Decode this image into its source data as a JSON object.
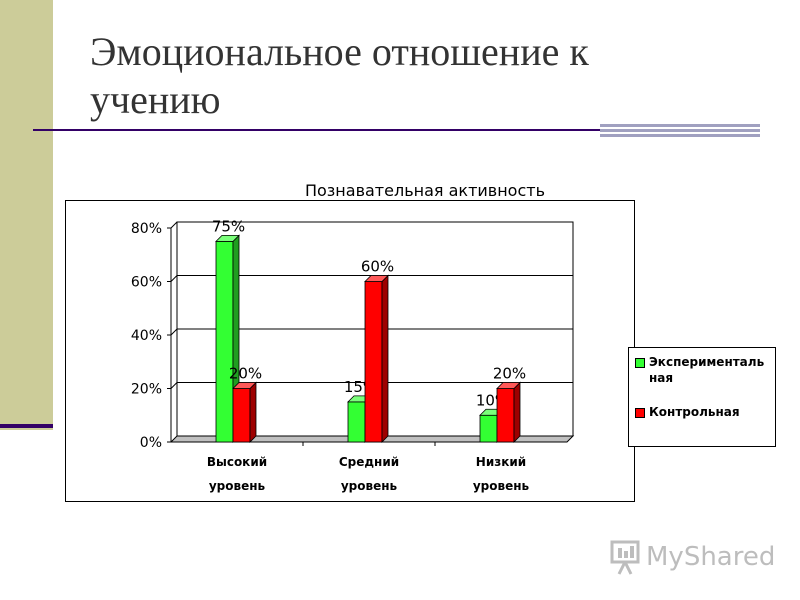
{
  "slide": {
    "title_line1": "Эмоциональное отношение к",
    "title_line2": "учению",
    "watermark": "MyShared"
  },
  "colors": {
    "accent_bar": "#cccc99",
    "rule": "#330066",
    "series_green": "#33ff33",
    "series_red": "#ff0000"
  },
  "chart_data": {
    "type": "bar",
    "title": "Познавательная активность",
    "categories": [
      [
        "Высокий",
        "уровень"
      ],
      [
        "Средний",
        "уровень"
      ],
      [
        "Низкий",
        "уровень"
      ]
    ],
    "series": [
      {
        "name": "Экспериментальная",
        "legend_lines": [
          "Эксперименталь",
          "ная"
        ],
        "color": "#33ff33",
        "values": [
          75,
          15,
          10
        ],
        "labels": [
          "75%",
          "15%",
          "10%"
        ]
      },
      {
        "name": "Контрольная",
        "legend_lines": [
          "Контрольная"
        ],
        "color": "#ff0000",
        "values": [
          20,
          60,
          20
        ],
        "labels": [
          "20%",
          "60%",
          "20%"
        ]
      }
    ],
    "ylim": [
      0,
      80
    ],
    "yticks": [
      "0%",
      "20%",
      "40%",
      "60%",
      "80%"
    ],
    "ytick_values": [
      0,
      20,
      40,
      60,
      80
    ],
    "grid": true,
    "legend_position": "right"
  }
}
